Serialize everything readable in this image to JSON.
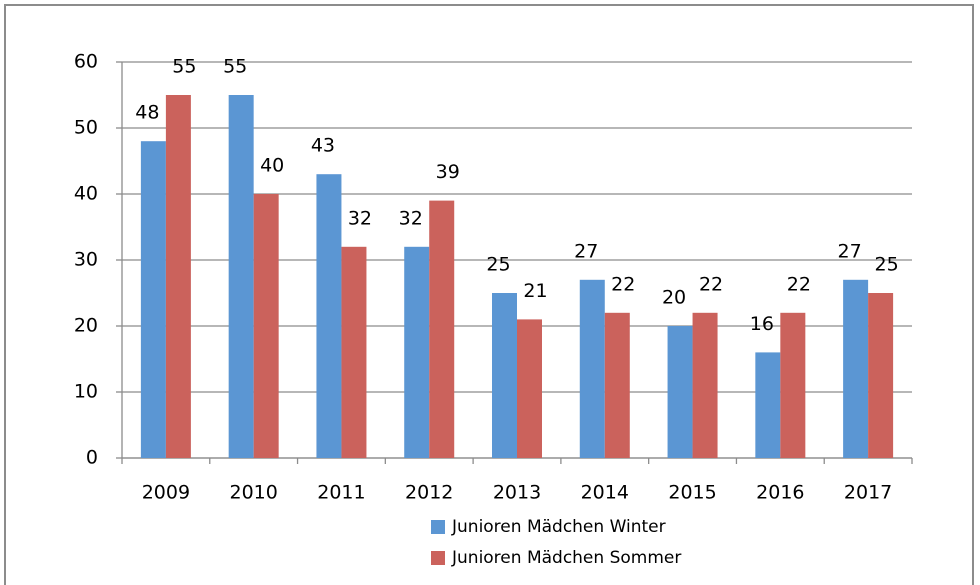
{
  "chart_data": {
    "type": "bar",
    "categories": [
      "2009",
      "2010",
      "2011",
      "2012",
      "2013",
      "2014",
      "2015",
      "2016",
      "2017"
    ],
    "series": [
      {
        "name": "Junioren Mädchen Winter",
        "color": "#5b96d3",
        "values": [
          48,
          55,
          43,
          32,
          25,
          27,
          20,
          16,
          27
        ]
      },
      {
        "name": "Junioren Mädchen Sommer",
        "color": "#cb625c",
        "values": [
          55,
          40,
          32,
          39,
          21,
          22,
          22,
          22,
          25
        ]
      }
    ],
    "ylim": [
      0,
      60
    ],
    "yticks": [
      0,
      10,
      20,
      30,
      40,
      50,
      60
    ],
    "grid": true,
    "legend": "bottom"
  }
}
